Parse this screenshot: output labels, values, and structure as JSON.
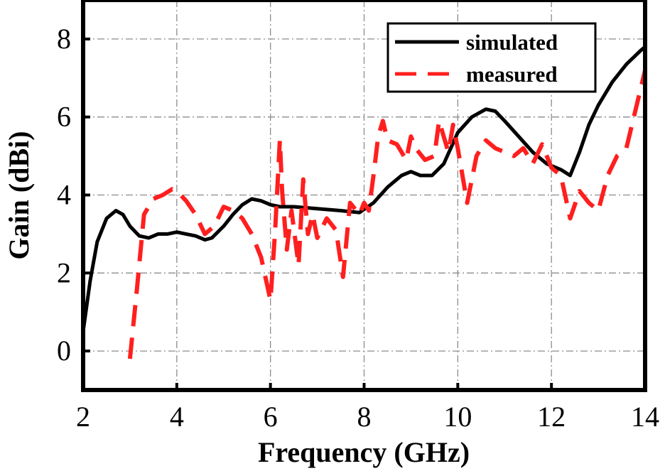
{
  "chart_data": {
    "type": "line",
    "title": "",
    "xlabel": "Frequency (GHz)",
    "ylabel": "Gain (dBi)",
    "xlim": [
      2,
      14
    ],
    "ylim": [
      -1,
      9
    ],
    "xticks": [
      2,
      4,
      6,
      8,
      10,
      12,
      14
    ],
    "yticks": [
      0,
      2,
      4,
      6,
      8
    ],
    "xtick_labels": [
      "2",
      "4",
      "6",
      "8",
      "10",
      "12",
      "14"
    ],
    "ytick_labels": [
      "0",
      "2",
      "4",
      "6",
      "8"
    ],
    "grid": true,
    "legend_position": "top-right",
    "series": [
      {
        "name": "simulated",
        "color": "#000000",
        "style": "solid",
        "x": [
          2.0,
          2.15,
          2.3,
          2.5,
          2.7,
          2.85,
          3.0,
          3.2,
          3.4,
          3.6,
          3.8,
          4.0,
          4.2,
          4.4,
          4.6,
          4.75,
          5.0,
          5.2,
          5.4,
          5.6,
          5.8,
          6.0,
          6.2,
          6.5,
          7.0,
          7.5,
          7.9,
          8.2,
          8.5,
          8.8,
          9.0,
          9.2,
          9.45,
          9.7,
          10.0,
          10.3,
          10.6,
          10.8,
          11.0,
          11.3,
          11.6,
          11.9,
          12.2,
          12.4,
          12.6,
          12.8,
          13.0,
          13.3,
          13.6,
          13.9,
          14.0
        ],
        "y": [
          0.5,
          1.8,
          2.8,
          3.4,
          3.6,
          3.5,
          3.2,
          2.95,
          2.9,
          3.0,
          3.0,
          3.05,
          3.0,
          2.95,
          2.85,
          2.9,
          3.2,
          3.5,
          3.75,
          3.9,
          3.85,
          3.75,
          3.7,
          3.7,
          3.65,
          3.6,
          3.55,
          3.8,
          4.2,
          4.5,
          4.6,
          4.5,
          4.5,
          4.8,
          5.6,
          6.0,
          6.2,
          6.15,
          5.9,
          5.5,
          5.1,
          4.8,
          4.65,
          4.5,
          5.1,
          5.8,
          6.3,
          6.9,
          7.35,
          7.7,
          7.8
        ]
      },
      {
        "name": "measured",
        "color": "#ff1f1f",
        "style": "dashed",
        "x": [
          3.0,
          3.15,
          3.3,
          3.5,
          3.7,
          3.9,
          4.0,
          4.2,
          4.4,
          4.6,
          4.8,
          5.0,
          5.2,
          5.4,
          5.6,
          5.8,
          6.0,
          6.1,
          6.2,
          6.25,
          6.35,
          6.45,
          6.6,
          6.7,
          6.8,
          6.9,
          7.0,
          7.2,
          7.4,
          7.55,
          7.7,
          7.9,
          8.0,
          8.1,
          8.2,
          8.3,
          8.4,
          8.5,
          8.7,
          8.9,
          9.0,
          9.1,
          9.3,
          9.5,
          9.6,
          9.8,
          9.9,
          10.0,
          10.1,
          10.2,
          10.4,
          10.6,
          10.8,
          11.0,
          11.2,
          11.4,
          11.6,
          11.8,
          12.0,
          12.2,
          12.4,
          12.6,
          12.8,
          13.0,
          13.2,
          13.4,
          13.6,
          13.8,
          14.0
        ],
        "y": [
          -0.2,
          1.6,
          3.5,
          3.9,
          4.0,
          4.15,
          4.1,
          3.85,
          3.5,
          3.0,
          3.2,
          3.7,
          3.6,
          3.4,
          3.0,
          2.4,
          1.3,
          3.1,
          5.4,
          4.1,
          2.6,
          3.6,
          2.2,
          4.4,
          3.0,
          3.5,
          2.9,
          3.4,
          3.1,
          1.9,
          3.8,
          3.5,
          3.8,
          3.6,
          4.5,
          5.5,
          5.9,
          5.4,
          5.3,
          4.9,
          5.5,
          5.2,
          4.9,
          5.0,
          5.9,
          5.1,
          5.8,
          5.2,
          4.5,
          3.8,
          5.0,
          5.4,
          5.2,
          5.1,
          5.0,
          5.2,
          4.8,
          5.3,
          4.7,
          4.5,
          3.4,
          4.1,
          3.8,
          3.6,
          4.5,
          5.0,
          5.2,
          6.2,
          7.2
        ]
      }
    ]
  }
}
